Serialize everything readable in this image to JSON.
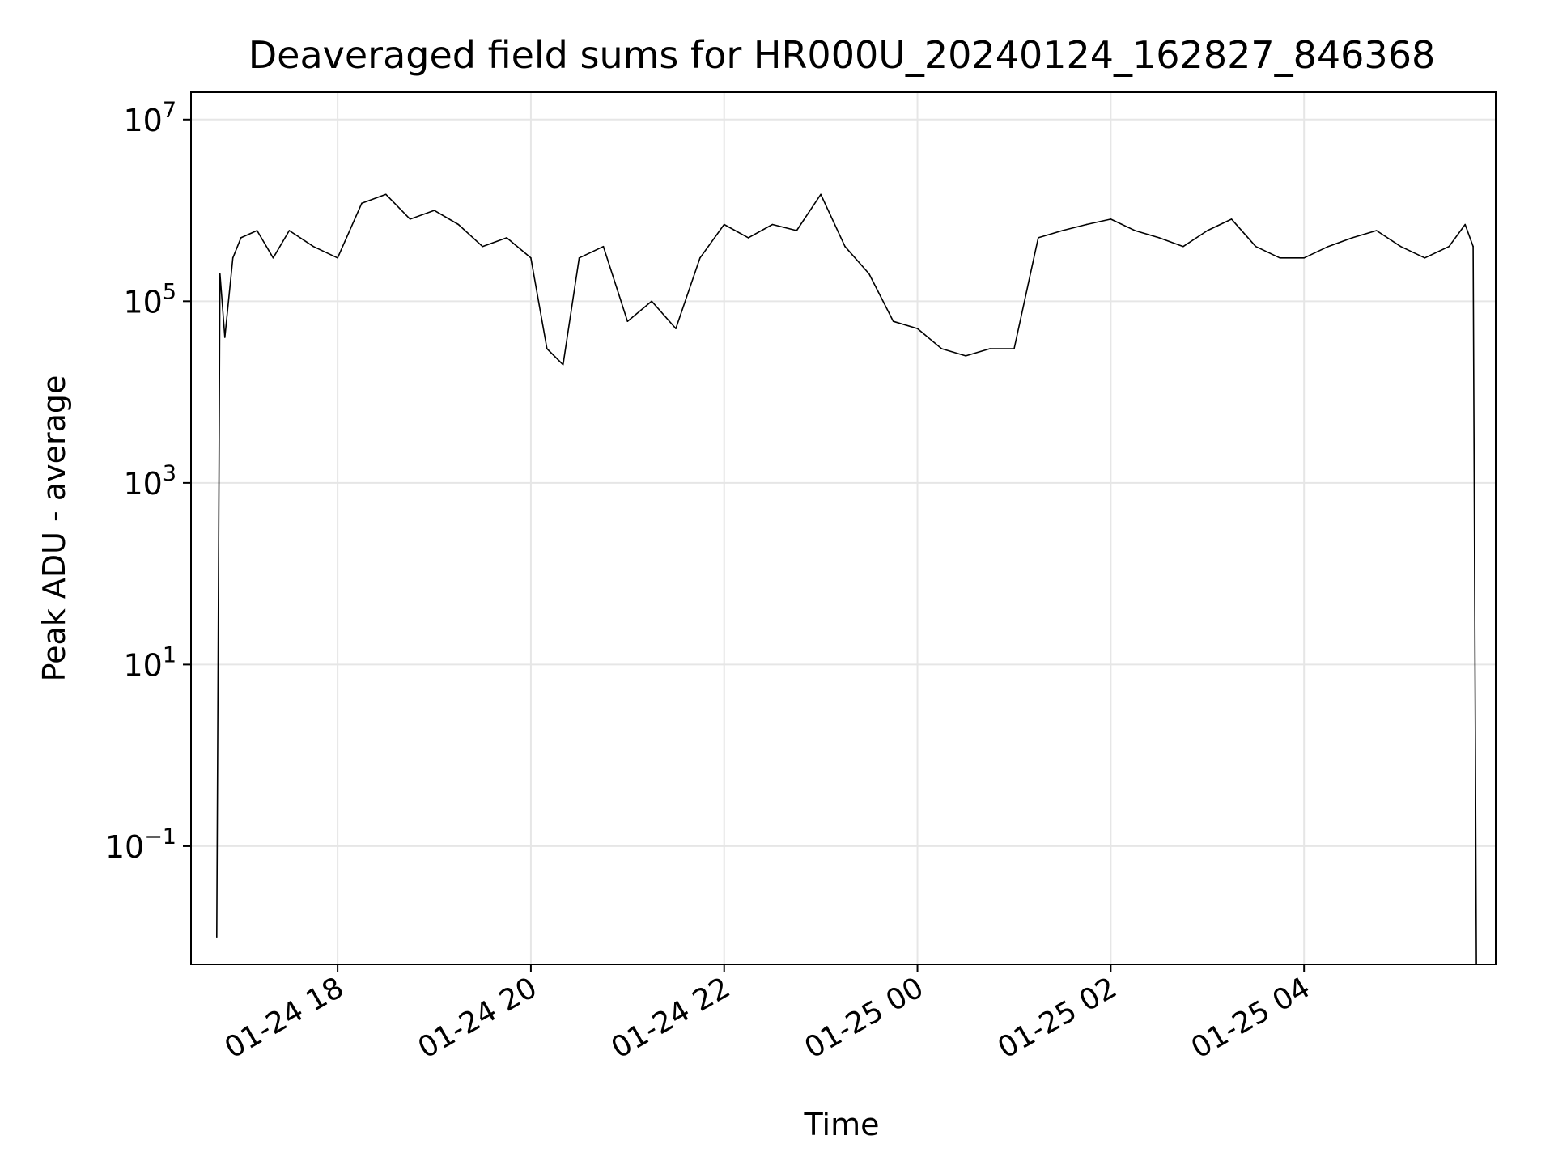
{
  "chart_data": {
    "type": "line",
    "title": "Deaveraged field sums for HR000U_20240124_162827_846368",
    "xlabel": "Time",
    "ylabel": "Peak ADU - average",
    "yscale": "log",
    "xlim": [
      "2024-01-24 16:29",
      "2024-01-25 05:59"
    ],
    "ylim": [
      0.005,
      20000000
    ],
    "x_ticks": [
      {
        "label": "01-24 18",
        "value": "2024-01-24 18:00"
      },
      {
        "label": "01-24 20",
        "value": "2024-01-24 20:00"
      },
      {
        "label": "01-24 22",
        "value": "2024-01-24 22:00"
      },
      {
        "label": "01-25 00",
        "value": "2024-01-25 00:00"
      },
      {
        "label": "01-25 02",
        "value": "2024-01-25 02:00"
      },
      {
        "label": "01-25 04",
        "value": "2024-01-25 04:00"
      }
    ],
    "y_ticks": [
      {
        "base": "10",
        "exp": "7",
        "value": 10000000
      },
      {
        "base": "10",
        "exp": "5",
        "value": 100000
      },
      {
        "base": "10",
        "exp": "3",
        "value": 1000
      },
      {
        "base": "10",
        "exp": "1",
        "value": 10
      },
      {
        "base": "10",
        "exp": "−1",
        "value": 0.1
      }
    ],
    "grid": true,
    "line_color": "#000000",
    "series": [
      {
        "x": [
          "2024-01-24 16:45",
          "2024-01-24 16:47",
          "2024-01-24 16:50",
          "2024-01-24 16:55",
          "2024-01-24 17:00",
          "2024-01-24 17:10",
          "2024-01-24 17:20",
          "2024-01-24 17:30",
          "2024-01-24 17:45",
          "2024-01-24 18:00",
          "2024-01-24 18:15",
          "2024-01-24 18:30",
          "2024-01-24 18:45",
          "2024-01-24 19:00",
          "2024-01-24 19:15",
          "2024-01-24 19:30",
          "2024-01-24 19:45",
          "2024-01-24 20:00",
          "2024-01-24 20:10",
          "2024-01-24 20:20",
          "2024-01-24 20:30",
          "2024-01-24 20:45",
          "2024-01-24 21:00",
          "2024-01-24 21:15",
          "2024-01-24 21:30",
          "2024-01-24 21:45",
          "2024-01-24 22:00",
          "2024-01-24 22:15",
          "2024-01-24 22:30",
          "2024-01-24 22:45",
          "2024-01-24 23:00",
          "2024-01-24 23:15",
          "2024-01-24 23:30",
          "2024-01-24 23:45",
          "2024-01-25 00:00",
          "2024-01-25 00:15",
          "2024-01-25 00:30",
          "2024-01-25 00:45",
          "2024-01-25 01:00",
          "2024-01-25 01:15",
          "2024-01-25 01:30",
          "2024-01-25 01:45",
          "2024-01-25 02:00",
          "2024-01-25 02:15",
          "2024-01-25 02:30",
          "2024-01-25 02:45",
          "2024-01-25 03:00",
          "2024-01-25 03:15",
          "2024-01-25 03:30",
          "2024-01-25 03:45",
          "2024-01-25 04:00",
          "2024-01-25 04:15",
          "2024-01-25 04:30",
          "2024-01-25 04:45",
          "2024-01-25 05:00",
          "2024-01-25 05:15",
          "2024-01-25 05:30",
          "2024-01-25 05:40",
          "2024-01-25 05:45",
          "2024-01-25 05:47"
        ],
        "y": [
          0.01,
          200000,
          40000,
          300000,
          500000,
          600000,
          300000,
          600000,
          400000,
          300000,
          1200000,
          1500000,
          800000,
          1000000,
          700000,
          400000,
          500000,
          300000,
          30000,
          20000,
          300000,
          400000,
          60000,
          100000,
          50000,
          300000,
          700000,
          500000,
          700000,
          600000,
          1500000,
          400000,
          200000,
          60000,
          50000,
          30000,
          25000,
          30000,
          30000,
          500000,
          600000,
          700000,
          800000,
          600000,
          500000,
          400000,
          600000,
          800000,
          400000,
          300000,
          300000,
          400000,
          500000,
          600000,
          400000,
          300000,
          400000,
          700000,
          400000,
          0.005
        ]
      }
    ]
  }
}
